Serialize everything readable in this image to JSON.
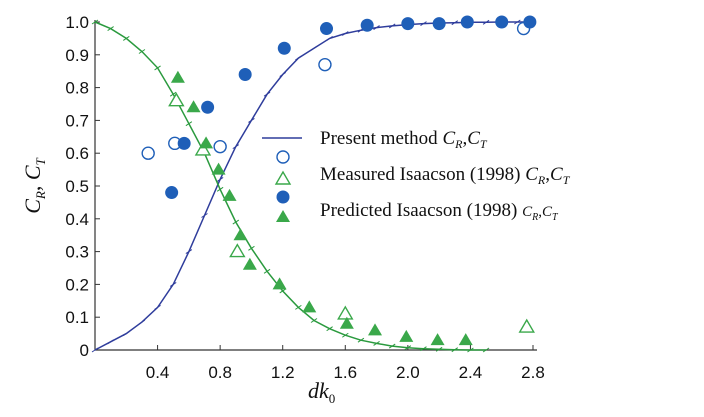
{
  "chart_data": {
    "type": "scatter",
    "title": "",
    "xlabel": "dk",
    "xlabel_sub": "0",
    "ylabel": [
      "C",
      "R",
      ", ",
      "C",
      "T"
    ],
    "xlim": [
      0.0,
      2.8
    ],
    "ylim": [
      0.0,
      1.0
    ],
    "xticks": [
      0.4,
      0.8,
      1.2,
      1.6,
      2.0,
      2.4,
      2.8
    ],
    "xtick_labels": [
      "0.4",
      "0.8",
      "1.2",
      "1.6",
      "2.0",
      "2.4",
      "2.8"
    ],
    "yticks": [
      0,
      0.1,
      0.2,
      0.3,
      0.4,
      0.5,
      0.6,
      0.7,
      0.8,
      0.9,
      1.0
    ],
    "ytick_labels": [
      "0",
      "0.1",
      "0.2",
      "0.3",
      "0.4",
      "0.5",
      "0.6",
      "0.7",
      "0.8",
      "0.9",
      "1.0"
    ],
    "colors": {
      "blue": "#2f3d9c",
      "blue_marker": "#1f5fb8",
      "green": "#3aa84a",
      "green_line": "#2a9a3e",
      "axis": "#333333"
    },
    "legend": {
      "position": "center-right",
      "entries": [
        {
          "label": "Present method ",
          "vars": [
            "C",
            "R",
            ",",
            "C",
            "T"
          ]
        },
        {
          "label": "Measured Isaacson (1998) ",
          "vars": [
            "C",
            "R",
            ",",
            "C",
            "T"
          ]
        },
        {
          "label": "Predicted Isaacson (1998)  ",
          "vars": [
            "C",
            "R",
            ",",
            "C",
            "T"
          ]
        }
      ]
    },
    "series": [
      {
        "name": "Present method C_R",
        "kind": "line",
        "color": "#2f3d9c",
        "x": [
          0.0,
          0.1,
          0.2,
          0.3,
          0.4,
          0.5,
          0.6,
          0.7,
          0.8,
          0.9,
          1.0,
          1.1,
          1.2,
          1.3,
          1.4,
          1.5,
          1.6,
          1.7,
          1.8,
          1.9,
          2.0,
          2.1,
          2.2,
          2.3,
          2.4,
          2.5,
          2.6,
          2.7,
          2.75
        ],
        "y": [
          0.0,
          0.025,
          0.05,
          0.085,
          0.13,
          0.2,
          0.3,
          0.41,
          0.52,
          0.62,
          0.7,
          0.78,
          0.84,
          0.89,
          0.92,
          0.95,
          0.965,
          0.975,
          0.983,
          0.988,
          0.992,
          0.995,
          0.997,
          0.998,
          0.999,
          0.999,
          1.0,
          1.0,
          1.0
        ]
      },
      {
        "name": "Present method C_T",
        "kind": "line",
        "color": "#2a9a3e",
        "x": [
          0.0,
          0.1,
          0.2,
          0.3,
          0.4,
          0.5,
          0.6,
          0.7,
          0.8,
          0.9,
          1.0,
          1.1,
          1.2,
          1.3,
          1.4,
          1.5,
          1.6,
          1.7,
          1.8,
          1.9,
          2.0,
          2.1,
          2.2,
          2.3,
          2.4,
          2.5
        ],
        "y": [
          1.0,
          0.98,
          0.95,
          0.91,
          0.86,
          0.78,
          0.69,
          0.6,
          0.49,
          0.39,
          0.31,
          0.24,
          0.18,
          0.13,
          0.09,
          0.065,
          0.045,
          0.03,
          0.02,
          0.012,
          0.007,
          0.004,
          0.002,
          0.001,
          0.0,
          0.0
        ]
      },
      {
        "name": "Measured Isaacson (1998) C_R",
        "kind": "marker",
        "marker": "open-circle",
        "color": "#1f5fb8",
        "x": [
          0.34,
          0.51,
          0.8,
          1.47,
          2.74
        ],
        "y": [
          0.6,
          0.63,
          0.62,
          0.87,
          0.98
        ]
      },
      {
        "name": "Measured Isaacson (1998) C_T",
        "kind": "marker",
        "marker": "open-triangle",
        "color": "#3aa84a",
        "x": [
          0.52,
          0.69,
          0.91,
          1.6,
          2.76
        ],
        "y": [
          0.76,
          0.61,
          0.3,
          0.11,
          0.07
        ]
      },
      {
        "name": "Predicted Isaacson (1998) C_R",
        "kind": "marker",
        "marker": "filled-circle",
        "color": "#1f5fb8",
        "x": [
          0.49,
          0.57,
          0.72,
          0.96,
          1.21,
          1.48,
          1.74,
          2.0,
          2.2,
          2.38,
          2.6,
          2.78
        ],
        "y": [
          0.48,
          0.63,
          0.74,
          0.84,
          0.92,
          0.98,
          0.99,
          0.995,
          0.995,
          1.0,
          1.0,
          1.0
        ]
      },
      {
        "name": "Predicted Isaacson (1998) C_T",
        "kind": "marker",
        "marker": "filled-triangle",
        "color": "#3aa84a",
        "x": [
          0.53,
          0.63,
          0.71,
          0.79,
          0.86,
          0.93,
          0.99,
          1.18,
          1.37,
          1.61,
          1.79,
          1.99,
          2.19,
          2.37
        ],
        "y": [
          0.83,
          0.74,
          0.63,
          0.55,
          0.47,
          0.35,
          0.26,
          0.2,
          0.13,
          0.08,
          0.06,
          0.04,
          0.03,
          0.03
        ]
      }
    ]
  }
}
